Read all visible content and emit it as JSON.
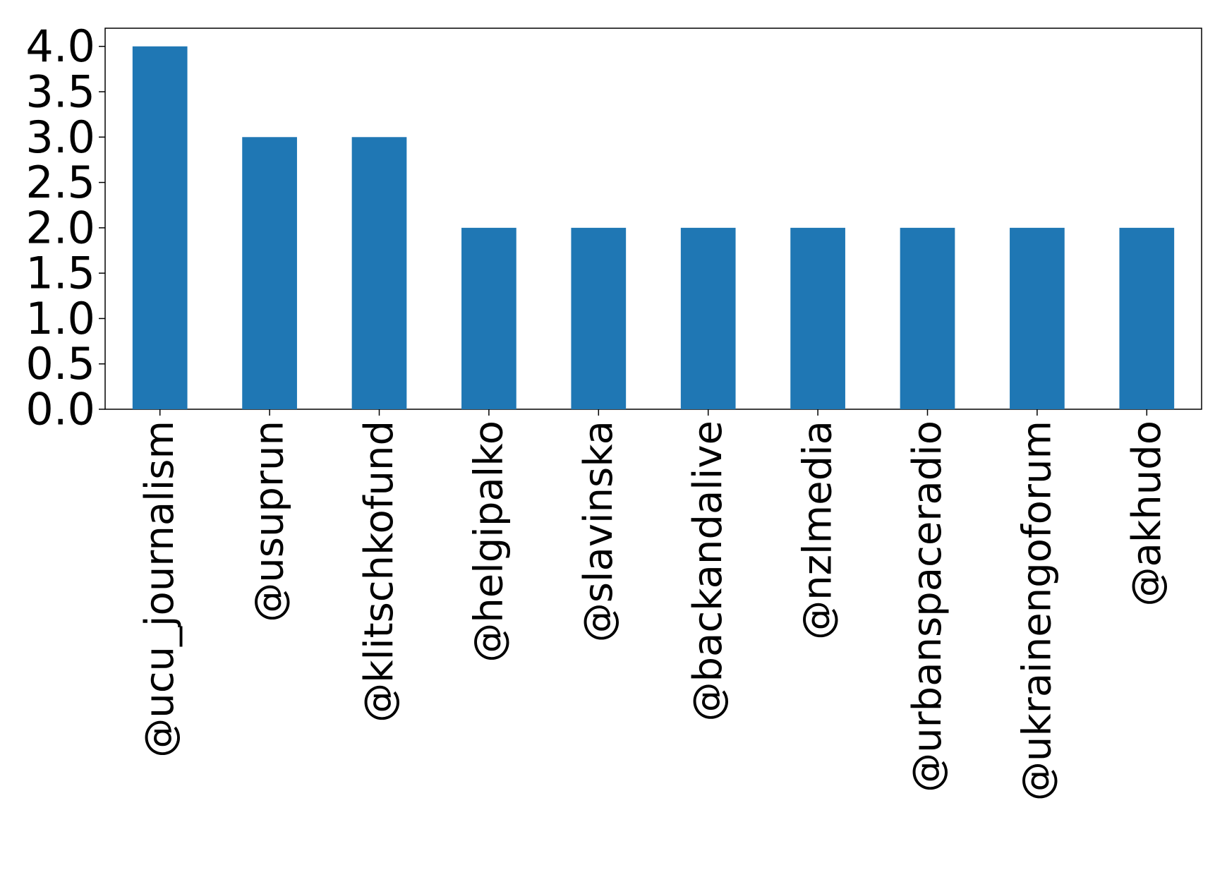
{
  "chart_data": {
    "type": "bar",
    "title": "",
    "xlabel": "",
    "ylabel": "",
    "categories": [
      "@ucu_journalism",
      "@usuprun",
      "@klitschkofund",
      "@helgipalko",
      "@slavinska",
      "@backandalive",
      "@nzlmedia",
      "@urbanspaceradio",
      "@ukrainengoforum",
      "@akhudo"
    ],
    "values": [
      4,
      3,
      3,
      2,
      2,
      2,
      2,
      2,
      2,
      2
    ],
    "ylim": [
      0,
      4.2
    ],
    "yticks": [
      "0.0",
      "0.5",
      "1.0",
      "1.5",
      "2.0",
      "2.5",
      "3.0",
      "3.5",
      "4.0"
    ],
    "grid": false,
    "legend": "none",
    "bar_color": "#1f77b4"
  }
}
